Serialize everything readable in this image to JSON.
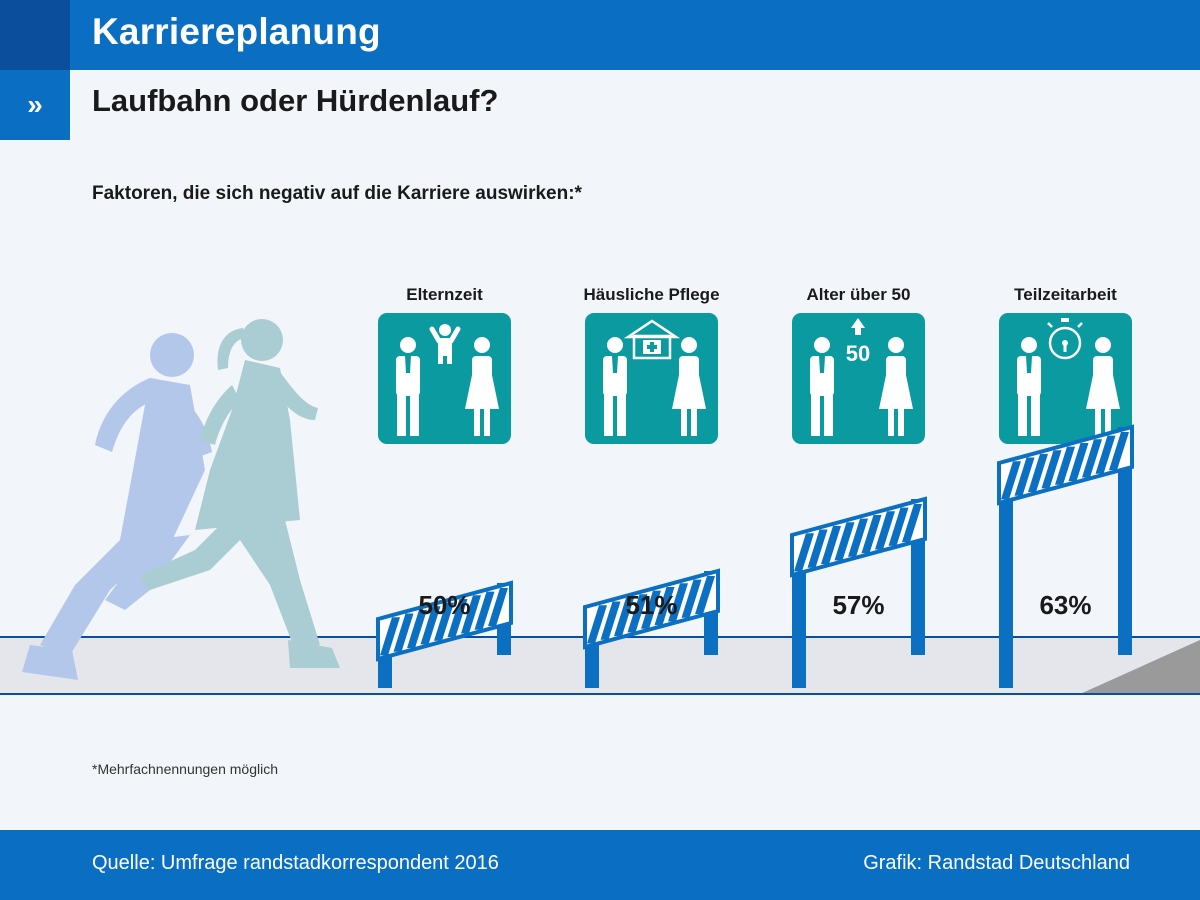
{
  "header": {
    "title": "Karriereplanung",
    "mark": "»"
  },
  "subheader": {
    "title": "Laufbahn oder Hürdenlauf?"
  },
  "chart_data": {
    "type": "bar",
    "title": "Faktoren, die sich negativ auf die Karriere auswirken:*",
    "categories": [
      "Elternzeit",
      "Häusliche Pflege",
      "Alter über 50",
      "Teilzeitarbeit"
    ],
    "values": [
      50,
      51,
      57,
      63
    ],
    "value_labels": [
      "50%",
      "51%",
      "57%",
      "63%"
    ],
    "unit": "%",
    "icons": [
      "parents-child-icon",
      "home-care-icon",
      "age-over-50-icon",
      "part-time-stopwatch-icon"
    ],
    "icon_badge": "50",
    "colors": {
      "icon_tile": "#0a9aa0",
      "hurdle": "#0b6fc2",
      "track": "#e4e6ec",
      "runner_man": "#b3c7ea",
      "runner_woman": "#a9cdd2"
    }
  },
  "footnote": "*Mehrfachnennungen möglich",
  "footer": {
    "source": "Quelle: Umfrage randstadkorrespondent 2016",
    "credit": "Grafik: Randstad Deutschland"
  },
  "colors": {
    "primary": "#0a6fc2",
    "primary_dark": "#0b4f9c",
    "background": "#f2f5fa"
  }
}
